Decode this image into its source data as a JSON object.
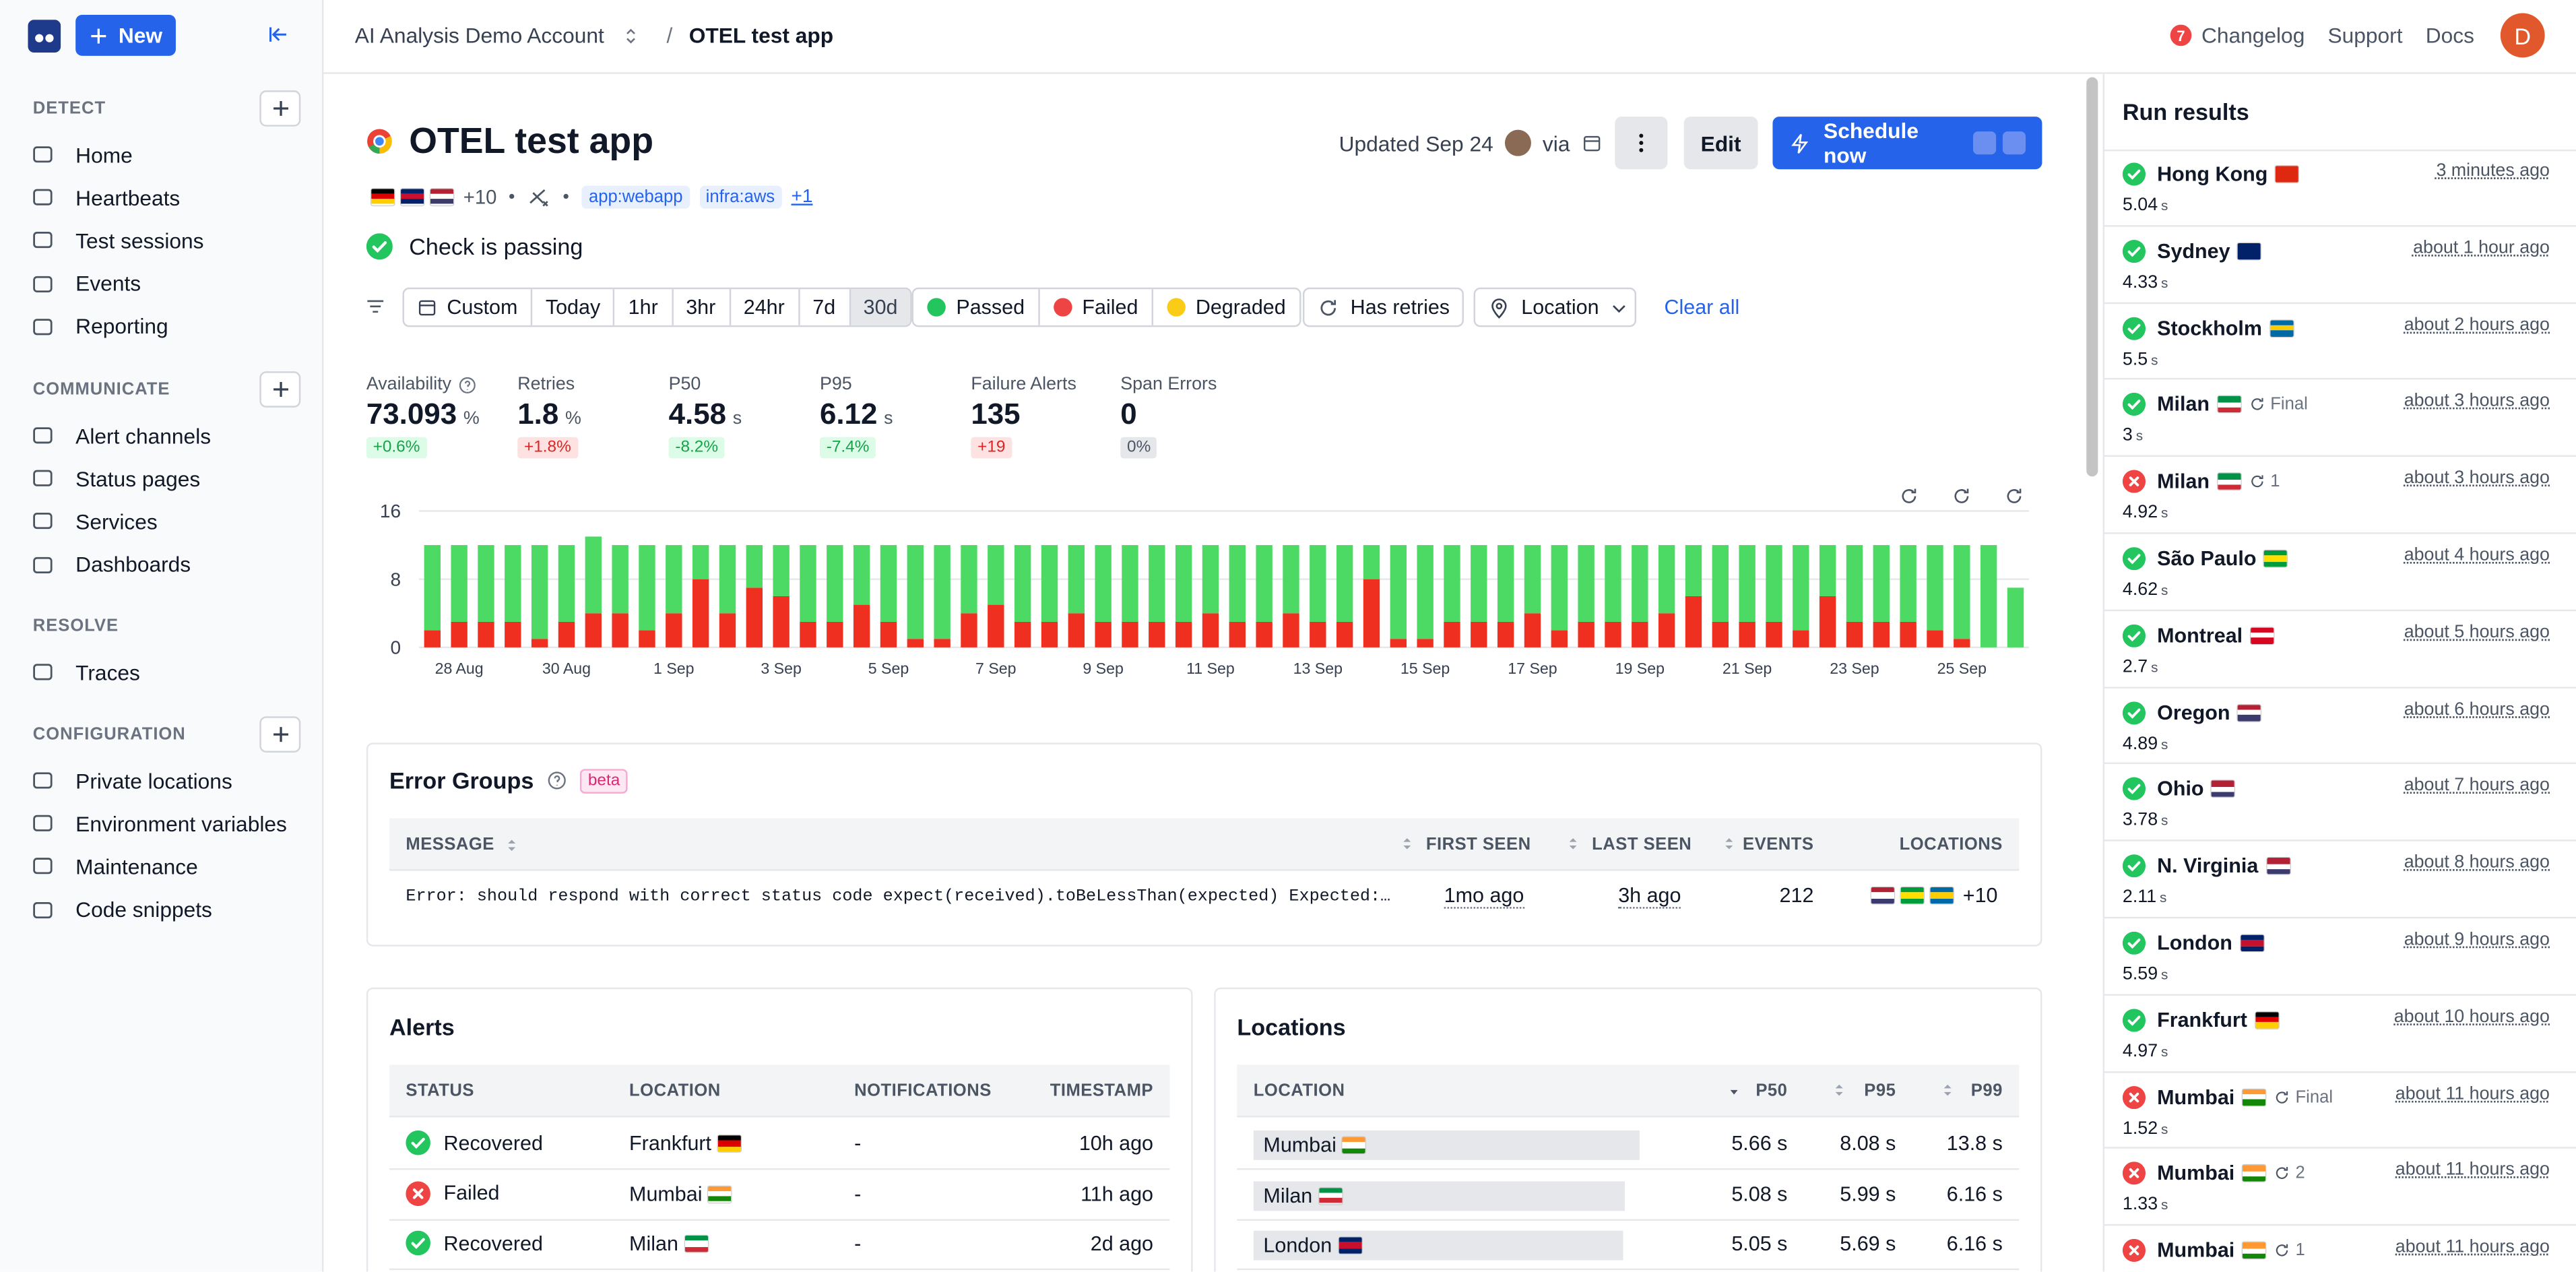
{
  "nav": {
    "new_button": "New",
    "sections": [
      {
        "title": "DETECT",
        "addable": true,
        "items": [
          "Home",
          "Heartbeats",
          "Test sessions",
          "Events",
          "Reporting"
        ]
      },
      {
        "title": "COMMUNICATE",
        "addable": true,
        "items": [
          "Alert channels",
          "Status pages",
          "Services",
          "Dashboards"
        ]
      },
      {
        "title": "RESOLVE",
        "addable": false,
        "items": [
          "Traces"
        ]
      },
      {
        "title": "CONFIGURATION",
        "addable": true,
        "items": [
          "Private locations",
          "Environment variables",
          "Maintenance",
          "Code snippets"
        ]
      }
    ]
  },
  "header": {
    "account": "AI Analysis Demo Account",
    "separator": "/",
    "page": "OTEL test app",
    "changelog_count": "7",
    "links": [
      "Changelog",
      "Support",
      "Docs"
    ],
    "avatar": "D"
  },
  "check": {
    "title": "OTEL test app",
    "flags": [
      [
        "#000000",
        "#dd0000",
        "#ffce00"
      ],
      [
        "#012169",
        "#c8102e",
        "#012169"
      ],
      [
        "#b22234",
        "#ffffff",
        "#3c3b6e"
      ]
    ],
    "location_extra": "+10",
    "tags": [
      "app:webapp",
      "infra:aws"
    ],
    "tags_more": "+1",
    "status": "Check is passing",
    "updated": "Updated Sep 24",
    "via": "via",
    "edit": "Edit",
    "schedule": "Schedule now"
  },
  "filters": {
    "ranges": [
      "Custom",
      "Today",
      "1hr",
      "3hr",
      "24hr",
      "7d",
      "30d"
    ],
    "active_range": 6,
    "results": [
      {
        "label": "Passed",
        "color": "#22c55e"
      },
      {
        "label": "Failed",
        "color": "#ef4444"
      },
      {
        "label": "Degraded",
        "color": "#facc15"
      }
    ],
    "retries": "Has retries",
    "location": "Location",
    "clear": "Clear all"
  },
  "metrics": [
    {
      "label": "Availability",
      "value": "73.093",
      "unit": "%",
      "delta": "+0.6%",
      "trend": "good"
    },
    {
      "label": "Retries",
      "value": "1.8",
      "unit": "%",
      "delta": "+1.8%",
      "trend": "bad"
    },
    {
      "label": "P50",
      "value": "4.58",
      "unit": "s",
      "delta": "-8.2%",
      "trend": "good"
    },
    {
      "label": "P95",
      "value": "6.12",
      "unit": "s",
      "delta": "-7.4%",
      "trend": "good"
    },
    {
      "label": "Failure Alerts",
      "value": "135",
      "delta": "+19",
      "trend": "bad"
    },
    {
      "label": "Span Errors",
      "value": "0",
      "delta": "0%",
      "trend": "neutral"
    }
  ],
  "chart_data": {
    "type": "bar",
    "stacked": true,
    "grid": true,
    "categories": [
      null,
      "28 Aug",
      null,
      null,
      null,
      "30 Aug",
      null,
      null,
      null,
      "1 Sep",
      null,
      null,
      null,
      "3 Sep",
      null,
      null,
      null,
      "5 Sep",
      null,
      null,
      null,
      "7 Sep",
      null,
      null,
      null,
      "9 Sep",
      null,
      null,
      null,
      "11 Sep",
      null,
      null,
      null,
      "13 Sep",
      null,
      null,
      null,
      "15 Sep",
      null,
      null,
      null,
      "17 Sep",
      null,
      null,
      null,
      "19 Sep",
      null,
      null,
      null,
      "21 Sep",
      null,
      null,
      null,
      "23 Sep",
      null,
      null,
      null,
      "25 Sep",
      null,
      null
    ],
    "series": [
      {
        "color": "#ef2f1f",
        "values": [
          2,
          3,
          3,
          3,
          1,
          3,
          4,
          4,
          2,
          4,
          8,
          4,
          7,
          6,
          3,
          3,
          5,
          3,
          1,
          1,
          4,
          5,
          3,
          3,
          4,
          3,
          3,
          3,
          3,
          4,
          3,
          3,
          4,
          3,
          3,
          8,
          1,
          1,
          3,
          3,
          3,
          4,
          2,
          3,
          3,
          3,
          4,
          6,
          3,
          3,
          3,
          2,
          6,
          3,
          3,
          3,
          2,
          1,
          0,
          0
        ]
      },
      {
        "color": "#4cd964",
        "values": [
          10,
          9,
          9,
          9,
          11,
          9,
          9,
          8,
          10,
          8,
          4,
          8,
          5,
          6,
          9,
          9,
          7,
          9,
          11,
          11,
          8,
          7,
          9,
          9,
          8,
          9,
          9,
          9,
          9,
          8,
          9,
          9,
          8,
          9,
          9,
          4,
          11,
          11,
          9,
          9,
          9,
          8,
          10,
          9,
          9,
          9,
          8,
          6,
          9,
          9,
          9,
          10,
          6,
          9,
          9,
          9,
          10,
          11,
          12,
          7
        ]
      }
    ],
    "ylim": [
      0,
      16
    ],
    "yticks": [
      0,
      8,
      16
    ]
  },
  "error_groups": {
    "title": "Error Groups",
    "badge": "beta",
    "columns": [
      "MESSAGE",
      "FIRST SEEN",
      "LAST SEEN",
      "EVENTS",
      "LOCATIONS"
    ],
    "rows": [
      {
        "message": "Error: should respond with correct status code expect(received).toBeLessThan(expected) Expected:…",
        "first_seen": "1mo ago",
        "last_seen": "3h ago",
        "events": "212",
        "flags": [
          [
            "#b22234",
            "#ffffff",
            "#3c3b6e"
          ],
          [
            "#009c3b",
            "#ffdf00",
            "#009c3b"
          ],
          [
            "#006aa7",
            "#fecc02",
            "#006aa7"
          ]
        ],
        "more": "+10"
      }
    ]
  },
  "alerts": {
    "title": "Alerts",
    "columns": [
      "STATUS",
      "LOCATION",
      "NOTIFICATIONS",
      "TIMESTAMP"
    ],
    "rows": [
      {
        "status": "Recovered",
        "ok": true,
        "location": "Frankfurt",
        "flag": [
          "#000000",
          "#dd0000",
          "#ffce00"
        ],
        "notifications": "-",
        "timestamp": "10h ago"
      },
      {
        "status": "Failed",
        "ok": false,
        "location": "Mumbai",
        "flag": [
          "#ff9933",
          "#ffffff",
          "#138808"
        ],
        "notifications": "-",
        "timestamp": "11h ago"
      },
      {
        "status": "Recovered",
        "ok": true,
        "location": "Milan",
        "flag": [
          "#009246",
          "#ffffff",
          "#ce2b37"
        ],
        "notifications": "-",
        "timestamp": "2d ago"
      }
    ]
  },
  "locations": {
    "title": "Locations",
    "columns": [
      "LOCATION",
      "P50",
      "P95",
      "P99"
    ],
    "rows": [
      {
        "location": "Mumbai",
        "flag": [
          "#ff9933",
          "#ffffff",
          "#138808"
        ],
        "p50": "5.66 s",
        "p95": "8.08 s",
        "p99": "13.8 s"
      },
      {
        "location": "Milan",
        "flag": [
          "#009246",
          "#ffffff",
          "#ce2b37"
        ],
        "p50": "5.08 s",
        "p95": "5.99 s",
        "p99": "6.16 s"
      },
      {
        "location": "London",
        "flag": [
          "#012169",
          "#c8102e",
          "#012169"
        ],
        "p50": "5.05 s",
        "p95": "5.69 s",
        "p99": "6.16 s"
      }
    ]
  },
  "run_results": {
    "title": "Run results",
    "items": [
      {
        "location": "Hong Kong",
        "flag": [
          "#de2910"
        ],
        "ok": true,
        "time": "3 minutes ago",
        "duration": "5.04",
        "unit": "s"
      },
      {
        "location": "Sydney",
        "flag": [
          "#012169"
        ],
        "ok": true,
        "time": "about 1 hour ago",
        "duration": "4.33",
        "unit": "s"
      },
      {
        "location": "Stockholm",
        "flag": [
          "#006aa7",
          "#fecc02",
          "#006aa7"
        ],
        "ok": true,
        "time": "about 2 hours ago",
        "duration": "5.5",
        "unit": "s"
      },
      {
        "location": "Milan",
        "flag": [
          "#009246",
          "#ffffff",
          "#ce2b37"
        ],
        "ok": true,
        "retry": "Final",
        "time": "about 3 hours ago",
        "duration": "3",
        "unit": "s"
      },
      {
        "location": "Milan",
        "flag": [
          "#009246",
          "#ffffff",
          "#ce2b37"
        ],
        "ok": false,
        "retry": "1",
        "time": "about 3 hours ago",
        "duration": "4.92",
        "unit": "s"
      },
      {
        "location": "São Paulo",
        "flag": [
          "#009c3b",
          "#ffdf00",
          "#009c3b"
        ],
        "ok": true,
        "time": "about 4 hours ago",
        "duration": "4.62",
        "unit": "s"
      },
      {
        "location": "Montreal",
        "flag": [
          "#d80621",
          "#ffffff",
          "#d80621"
        ],
        "ok": true,
        "time": "about 5 hours ago",
        "duration": "2.7",
        "unit": "s"
      },
      {
        "location": "Oregon",
        "flag": [
          "#b22234",
          "#ffffff",
          "#3c3b6e"
        ],
        "ok": true,
        "time": "about 6 hours ago",
        "duration": "4.89",
        "unit": "s"
      },
      {
        "location": "Ohio",
        "flag": [
          "#b22234",
          "#ffffff",
          "#3c3b6e"
        ],
        "ok": true,
        "time": "about 7 hours ago",
        "duration": "3.78",
        "unit": "s"
      },
      {
        "location": "N. Virginia",
        "flag": [
          "#b22234",
          "#ffffff",
          "#3c3b6e"
        ],
        "ok": true,
        "time": "about 8 hours ago",
        "duration": "2.11",
        "unit": "s"
      },
      {
        "location": "London",
        "flag": [
          "#012169",
          "#c8102e",
          "#012169"
        ],
        "ok": true,
        "time": "about 9 hours ago",
        "duration": "5.59",
        "unit": "s"
      },
      {
        "location": "Frankfurt",
        "flag": [
          "#000000",
          "#dd0000",
          "#ffce00"
        ],
        "ok": true,
        "time": "about 10 hours ago",
        "duration": "4.97",
        "unit": "s"
      },
      {
        "location": "Mumbai",
        "flag": [
          "#ff9933",
          "#ffffff",
          "#138808"
        ],
        "ok": false,
        "retry": "Final",
        "time": "about 11 hours ago",
        "duration": "1.52",
        "unit": "s"
      },
      {
        "location": "Mumbai",
        "flag": [
          "#ff9933",
          "#ffffff",
          "#138808"
        ],
        "ok": false,
        "retry": "2",
        "time": "about 11 hours ago",
        "duration": "1.33",
        "unit": "s"
      },
      {
        "location": "Mumbai",
        "flag": [
          "#ff9933",
          "#ffffff",
          "#138808"
        ],
        "ok": false,
        "retry": "1",
        "time": "about 11 hours ago",
        "duration": "",
        "unit": "s"
      }
    ]
  }
}
